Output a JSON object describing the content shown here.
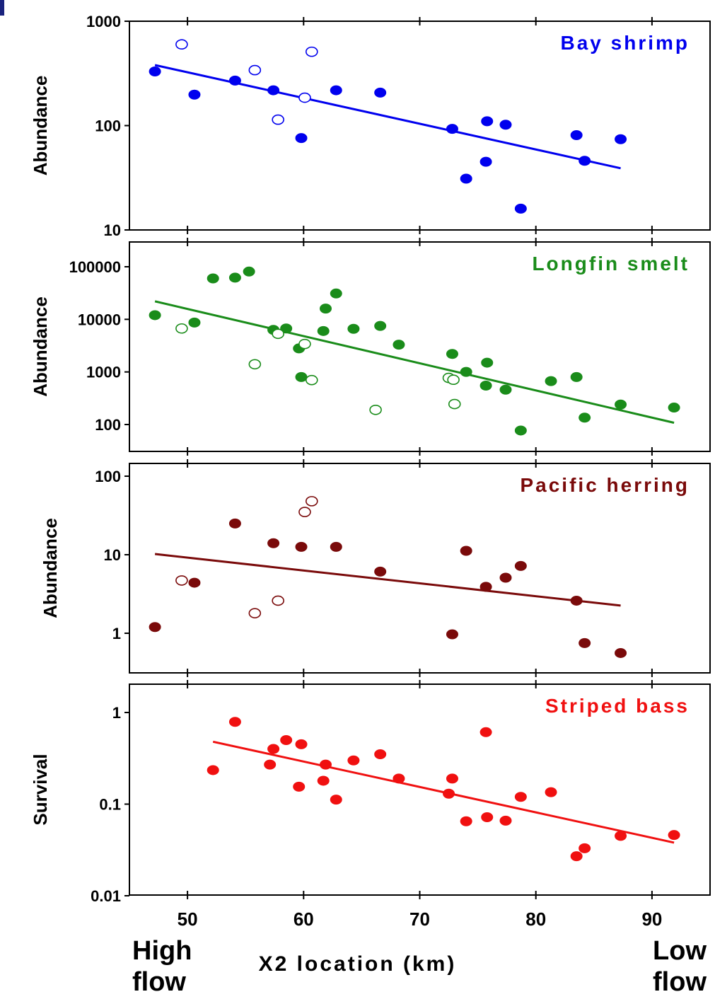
{
  "figure": {
    "x_axis_title": "X2 location (km)",
    "x_tick_labels": [
      "50",
      "60",
      "70",
      "80",
      "90"
    ],
    "left_note": [
      "High",
      "flow"
    ],
    "right_note": [
      "Low",
      "flow"
    ]
  },
  "chart_data": [
    {
      "type": "scatter",
      "title": "Bay shrimp",
      "ylabel": "Abundance",
      "xlabel": "X2 location (km)",
      "yscale": "log",
      "ylim": [
        10,
        1000
      ],
      "xlim": [
        45,
        95
      ],
      "y_tick_labels": [
        "1000",
        "100",
        "10"
      ],
      "color": "#0000ee",
      "series": [
        {
          "name": "",
          "marker": "filled",
          "points": [
            [
              47.2,
              330
            ],
            [
              50.6,
              198
            ],
            [
              54.1,
              270
            ],
            [
              57.4,
              218
            ],
            [
              59.8,
              76
            ],
            [
              62.8,
              218
            ],
            [
              66.6,
              207
            ],
            [
              72.8,
              93
            ],
            [
              74.0,
              31
            ],
            [
              75.8,
              110
            ],
            [
              75.7,
              45
            ],
            [
              77.4,
              102
            ],
            [
              78.7,
              16
            ],
            [
              83.5,
              81
            ],
            [
              84.2,
              46
            ],
            [
              87.3,
              74
            ]
          ]
        },
        {
          "name": "",
          "marker": "open",
          "points": [
            [
              49.5,
              600
            ],
            [
              55.8,
              340
            ],
            [
              57.8,
              114
            ],
            [
              60.1,
              185
            ],
            [
              60.7,
              510
            ]
          ]
        }
      ],
      "trend": {
        "x": [
          47.2,
          87.3
        ],
        "y": [
          380,
          39
        ]
      }
    },
    {
      "type": "scatter",
      "title": "Longfin smelt",
      "ylabel": "Abundance",
      "xlabel": "X2 location (km)",
      "yscale": "log",
      "ylim": [
        40,
        200000
      ],
      "xlim": [
        45,
        95
      ],
      "y_tick_labels": [
        "100000",
        "10000",
        "1000",
        "100"
      ],
      "color": "#1a8c1a",
      "series": [
        {
          "name": "",
          "marker": "filled",
          "points": [
            [
              47.2,
              12000
            ],
            [
              50.6,
              8700
            ],
            [
              52.2,
              60000
            ],
            [
              54.1,
              62000
            ],
            [
              55.3,
              81000
            ],
            [
              57.4,
              6300
            ],
            [
              58.5,
              6700
            ],
            [
              59.6,
              2800
            ],
            [
              59.8,
              800
            ],
            [
              61.7,
              6000
            ],
            [
              61.9,
              16000
            ],
            [
              62.8,
              31000
            ],
            [
              64.3,
              6600
            ],
            [
              66.6,
              7500
            ],
            [
              68.2,
              3300
            ],
            [
              72.8,
              2200
            ],
            [
              74.0,
              1000
            ],
            [
              75.7,
              550
            ],
            [
              75.8,
              1500
            ],
            [
              77.4,
              460
            ],
            [
              78.7,
              77
            ],
            [
              81.3,
              670
            ],
            [
              83.5,
              800
            ],
            [
              84.2,
              135
            ],
            [
              87.3,
              240
            ],
            [
              91.9,
              210
            ]
          ]
        },
        {
          "name": "",
          "marker": "open",
          "points": [
            [
              49.5,
              6700
            ],
            [
              55.8,
              1400
            ],
            [
              57.8,
              5300
            ],
            [
              60.1,
              3400
            ],
            [
              60.7,
              700
            ],
            [
              66.2,
              190
            ],
            [
              72.5,
              770
            ],
            [
              72.9,
              710
            ],
            [
              73.0,
              245
            ]
          ]
        }
      ],
      "trend": {
        "x": [
          47.2,
          91.9
        ],
        "y": [
          22000,
          108
        ]
      }
    },
    {
      "type": "scatter",
      "title": "Pacific herring",
      "ylabel": "Abundance",
      "xlabel": "X2 location (km)",
      "yscale": "log",
      "ylim": [
        0.3,
        100
      ],
      "xlim": [
        45,
        95
      ],
      "y_tick_labels": [
        "100",
        "10",
        "1"
      ],
      "color": "#7a0a0a",
      "series": [
        {
          "name": "",
          "marker": "filled",
          "points": [
            [
              47.2,
              1.2
            ],
            [
              50.6,
              4.4
            ],
            [
              54.1,
              25
            ],
            [
              57.4,
              14
            ],
            [
              59.8,
              12.6
            ],
            [
              62.8,
              12.6
            ],
            [
              66.6,
              6.1
            ],
            [
              72.8,
              0.97
            ],
            [
              74.0,
              11.2
            ],
            [
              75.7,
              3.9
            ],
            [
              77.4,
              5.1
            ],
            [
              78.7,
              7.2
            ],
            [
              83.5,
              2.6
            ],
            [
              84.2,
              0.75
            ],
            [
              87.3,
              0.56
            ]
          ]
        },
        {
          "name": "",
          "marker": "open",
          "points": [
            [
              49.5,
              4.7
            ],
            [
              55.8,
              1.8
            ],
            [
              57.8,
              2.6
            ],
            [
              60.1,
              35
            ],
            [
              60.7,
              48
            ]
          ]
        }
      ],
      "trend": {
        "x": [
          47.2,
          87.3
        ],
        "y": [
          10.2,
          2.25
        ]
      }
    },
    {
      "type": "scatter",
      "title": "Striped bass",
      "ylabel": "Survival",
      "xlabel": "X2 location (km)",
      "yscale": "log",
      "ylim": [
        0.01,
        2
      ],
      "xlim": [
        45,
        95
      ],
      "y_tick_labels": [
        "1",
        "0.1",
        "0.01"
      ],
      "color": "#f01010",
      "series": [
        {
          "name": "",
          "marker": "filled",
          "points": [
            [
              52.2,
              0.235
            ],
            [
              54.1,
              0.79
            ],
            [
              57.1,
              0.27
            ],
            [
              57.4,
              0.4
            ],
            [
              58.5,
              0.5
            ],
            [
              59.6,
              0.155
            ],
            [
              59.8,
              0.45
            ],
            [
              61.7,
              0.18
            ],
            [
              61.9,
              0.27
            ],
            [
              62.8,
              0.112
            ],
            [
              64.3,
              0.3
            ],
            [
              66.6,
              0.35
            ],
            [
              68.2,
              0.19
            ],
            [
              72.5,
              0.13
            ],
            [
              72.8,
              0.19
            ],
            [
              74.0,
              0.065
            ],
            [
              75.7,
              0.61
            ],
            [
              75.8,
              0.072
            ],
            [
              77.4,
              0.066
            ],
            [
              78.7,
              0.12
            ],
            [
              81.3,
              0.135
            ],
            [
              83.5,
              0.027
            ],
            [
              84.2,
              0.033
            ],
            [
              87.3,
              0.045
            ],
            [
              91.9,
              0.046
            ]
          ]
        }
      ],
      "trend": {
        "x": [
          52.2,
          91.9
        ],
        "y": [
          0.48,
          0.038
        ]
      }
    }
  ]
}
